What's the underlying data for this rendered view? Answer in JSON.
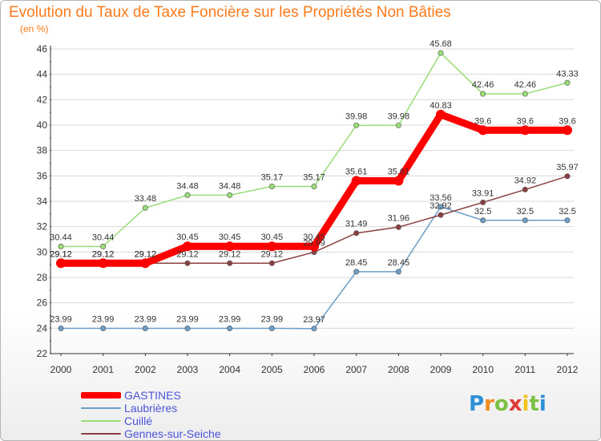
{
  "chart_data": {
    "type": "line",
    "title": "Evolution du Taux de Taxe Foncière sur les Propriétés Non Bâties",
    "subtitle": "(en %)",
    "categories": [
      "2000",
      "2001",
      "2002",
      "2003",
      "2004",
      "2005",
      "2006",
      "2007",
      "2008",
      "2009",
      "2010",
      "2011",
      "2012"
    ],
    "ylim": [
      22,
      46
    ],
    "y_ticks": [
      22,
      24,
      26,
      28,
      30,
      32,
      34,
      36,
      38,
      40,
      42,
      44,
      46
    ],
    "grid": "horizontal",
    "legend_position": "bottom-left",
    "series": [
      {
        "name": "GASTINES",
        "color": "#ff0000",
        "values": [
          29.12,
          29.12,
          29.12,
          30.45,
          30.45,
          30.45,
          30.45,
          35.61,
          35.61,
          40.83,
          39.6,
          39.6,
          39.6
        ],
        "labels": [
          "29.12",
          "29.12",
          "29.12",
          "30.45",
          "30.45",
          "30.45",
          "30.45",
          "35.61",
          "35.61",
          "40.83",
          "39.6",
          "39.6",
          "39.6"
        ]
      },
      {
        "name": "Laubrières",
        "color": "#6d9ec8",
        "values": [
          23.99,
          23.99,
          23.99,
          23.99,
          23.99,
          23.99,
          23.97,
          28.45,
          28.45,
          33.56,
          32.5,
          32.5,
          32.5
        ],
        "labels": [
          "23.99",
          "23.99",
          "23.99",
          "23.99",
          "23.99",
          "23.99",
          "23.97",
          "28.45",
          "28.45",
          "33.56",
          "32.5",
          "32.5",
          "32.5"
        ]
      },
      {
        "name": "Cuillé",
        "color": "#99dd77",
        "values": [
          30.44,
          30.44,
          33.48,
          34.48,
          34.48,
          35.17,
          35.17,
          39.98,
          39.98,
          45.68,
          42.46,
          42.46,
          43.33
        ],
        "labels": [
          "30.44",
          "30.44",
          "33.48",
          "34.48",
          "34.48",
          "35.17",
          "35.17",
          "39.98",
          "39.98",
          "45.68",
          "42.46",
          "42.46",
          "43.33"
        ]
      },
      {
        "name": "Gennes-sur-Seiche",
        "color": "#8b4040",
        "values": [
          29.12,
          29.12,
          29.12,
          29.12,
          29.12,
          29.12,
          29.99,
          31.49,
          31.96,
          32.92,
          33.91,
          34.92,
          35.97
        ],
        "labels": [
          "29.12",
          "29.12",
          "29.12",
          "29.12",
          "29.12",
          "29.12",
          "29.99",
          "31.49",
          "31.96",
          "32.92",
          "33.91",
          "34.92",
          "35.97"
        ]
      }
    ]
  },
  "logo": {
    "letters": [
      "P",
      "r",
      "o",
      "x",
      "i",
      "t",
      "i"
    ],
    "colors": [
      "#2f8fd6",
      "#f28a20",
      "#7cc242",
      "#e03a3a",
      "#f2c21a",
      "#7cc242",
      "#2f8fd6"
    ]
  }
}
